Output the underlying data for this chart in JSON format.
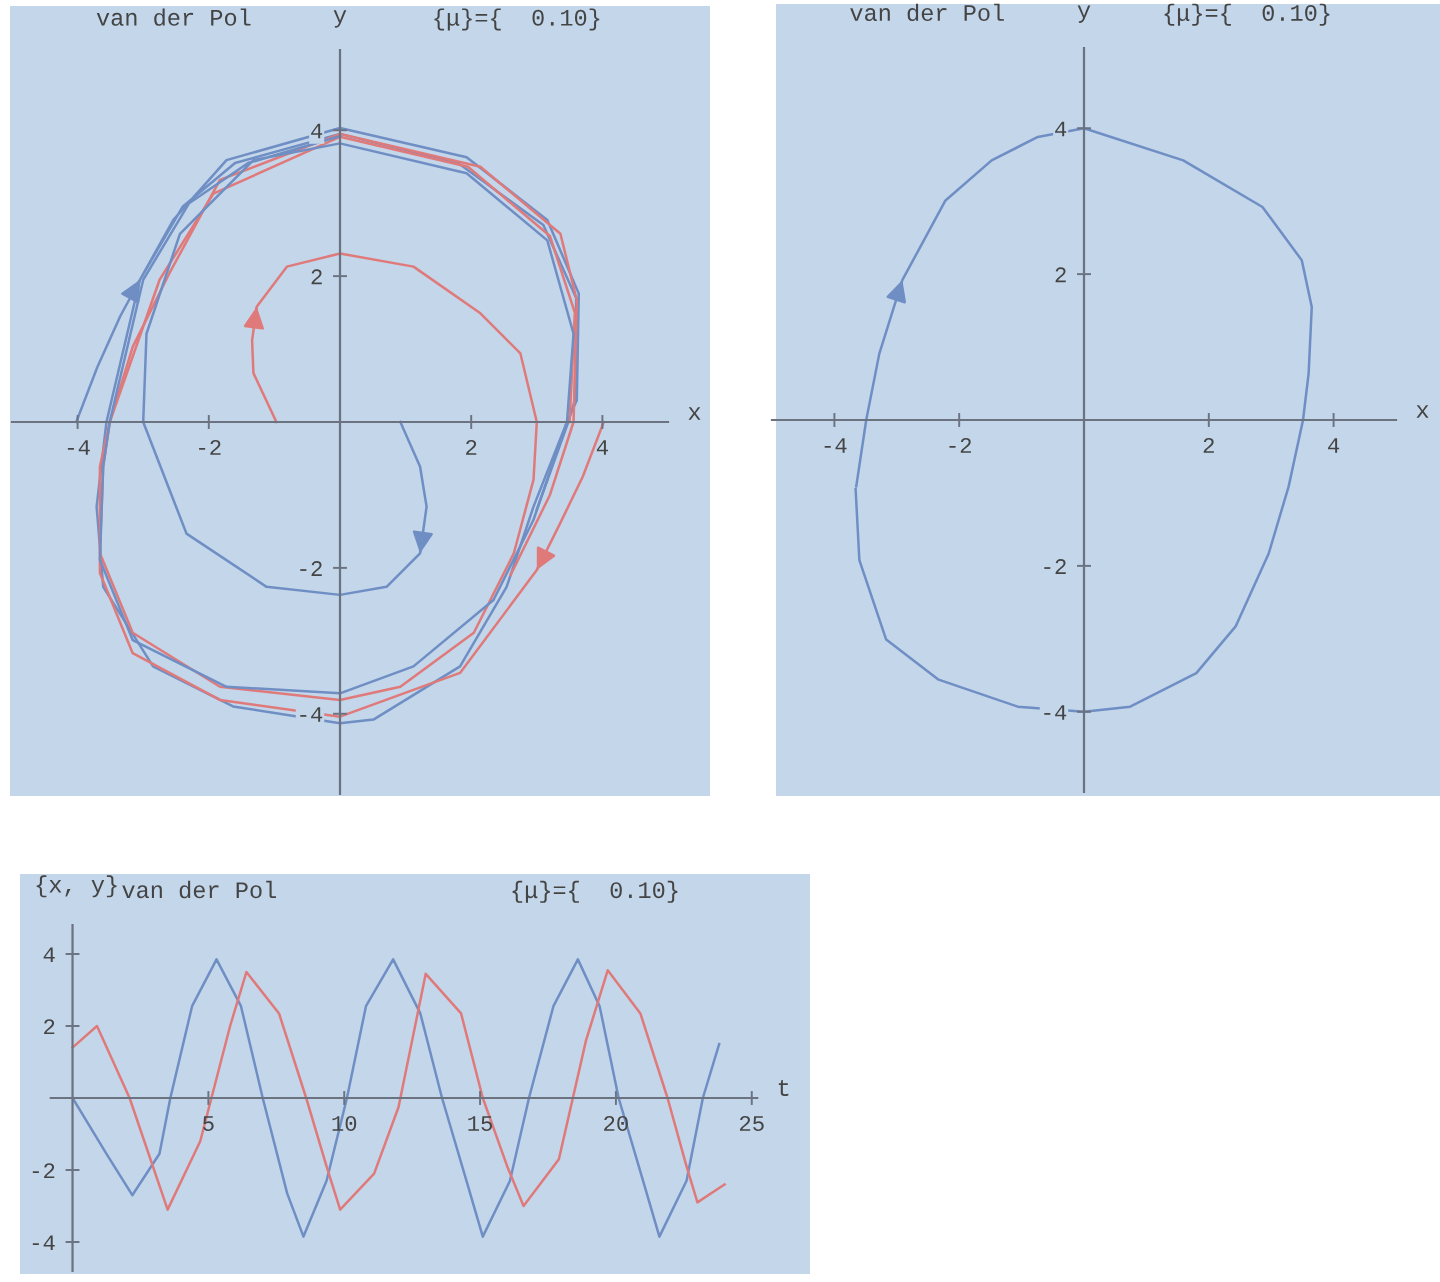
{
  "chart_data": [
    {
      "type": "line",
      "title": "van der Pol",
      "subtitle": "{μ}={  0.10}",
      "xlabel": "x",
      "ylabel": "y",
      "xlim": [
        -5,
        5
      ],
      "ylim": [
        -5.1,
        5.1
      ],
      "xticks": [
        -4,
        -2,
        2,
        4
      ],
      "yticks": [
        -4,
        -2,
        2,
        4
      ],
      "grid": false,
      "line_style": "solid",
      "marker": "none",
      "series": [
        {
          "color": "#6f8ec4",
          "x": [
            -4.02,
            -3.7,
            -3.35,
            -3.05,
            -2.54,
            -1.73,
            0,
            1.93,
            3.16,
            3.64,
            3.61,
            3.46,
            2.95,
            2.54,
            1.83,
            0.51,
            0,
            -1.63,
            -2.85,
            -3.61,
            -3.71,
            -3.56,
            -3.05,
            -2.4,
            -1.6,
            0,
            1.8,
            3.1,
            3.6,
            3.58,
            3.48,
            3.0
          ],
          "values": [
            0,
            0.75,
            1.45,
            1.95,
            2.77,
            3.59,
            4.03,
            3.63,
            2.77,
            1.76,
            0.3,
            0,
            -1.16,
            -2.26,
            -3.35,
            -4.08,
            -4.13,
            -3.9,
            -3.35,
            -2.26,
            -1.16,
            0,
            1.95,
            2.95,
            3.55,
            3.95,
            3.55,
            2.7,
            1.7,
            0.3,
            0,
            -1.2
          ]
        },
        {
          "color": "#e07a7a",
          "x": [
            4.02,
            3.7,
            3.35,
            3.0,
            1.83,
            0,
            -1.83,
            -3.16,
            -3.66,
            -3.66,
            -3.51,
            -3.16,
            -2.6,
            -1.83,
            0,
            2.14,
            3.36,
            3.61,
            3.56,
            3.2,
            2.6
          ],
          "values": [
            0,
            -0.75,
            -1.4,
            -2.03,
            -3.44,
            -4.04,
            -3.81,
            -3.17,
            -2.07,
            -0.61,
            0,
            1.03,
            2.04,
            3.32,
            3.95,
            3.5,
            2.58,
            1.67,
            0,
            -1.0,
            -2.1
          ]
        },
        {
          "color": "#e07a7a",
          "x": [
            -0.97,
            -1.32,
            -1.34,
            -1.27,
            -0.81,
            0,
            1.12,
            2.14,
            2.75,
            3.0,
            2.95,
            2.65,
            2.04,
            0.92,
            0,
            -1.83,
            -3.16,
            -3.66,
            -3.61,
            -3.51,
            -2.75,
            -1.93,
            0,
            1.95,
            3.2,
            3.58,
            3.5
          ],
          "values": [
            0,
            0.67,
            1.12,
            1.58,
            2.13,
            2.31,
            2.13,
            1.49,
            0.94,
            0,
            -0.79,
            -1.8,
            -2.89,
            -3.63,
            -3.81,
            -3.63,
            -2.89,
            -1.8,
            -0.61,
            0,
            1.95,
            3.13,
            3.91,
            3.5,
            2.55,
            1.5,
            0
          ]
        },
        {
          "color": "#6f8ec4",
          "x": [
            0.92,
            1.22,
            1.32,
            1.22,
            0.71,
            0,
            -1.12,
            -2.34,
            -3.0,
            -2.95,
            -2.44,
            -1.32,
            0,
            1.93,
            3.16,
            3.56,
            3.46,
            2.95,
            2.34,
            1.12,
            0,
            -1.73,
            -3.16,
            -3.66,
            -3.61,
            -3.51,
            -3.0,
            -2.3,
            -1.4,
            0
          ],
          "values": [
            0,
            -0.61,
            -1.16,
            -1.8,
            -2.26,
            -2.37,
            -2.26,
            -1.53,
            0,
            1.21,
            2.58,
            3.59,
            3.82,
            3.41,
            2.49,
            1.21,
            0,
            -1.34,
            -2.44,
            -3.35,
            -3.72,
            -3.63,
            -2.99,
            -1.89,
            -0.61,
            0,
            1.95,
            3.0,
            3.55,
            3.92
          ]
        }
      ]
    },
    {
      "type": "line",
      "title": "van der Pol",
      "subtitle": "{μ}={  0.10}",
      "xlabel": "x",
      "ylabel": "y",
      "xlim": [
        -5,
        5
      ],
      "ylim": [
        -5.1,
        5.1
      ],
      "xticks": [
        -4,
        -2,
        2,
        4
      ],
      "yticks": [
        -4,
        -2,
        2,
        4
      ],
      "grid": false,
      "line_style": "solid",
      "marker": "none",
      "series": [
        {
          "color": "#6f8ec4",
          "x": [
            -3.65,
            -3.49,
            -3.28,
            -2.91,
            -2.22,
            -1.48,
            -0.74,
            0,
            1.59,
            2.86,
            3.49,
            3.65,
            3.6,
            3.51,
            3.28,
            2.96,
            2.43,
            1.8,
            0.74,
            0,
            -1.06,
            -2.33,
            -3.17,
            -3.6,
            -3.66
          ],
          "values": [
            -0.91,
            0,
            0.91,
            1.92,
            3.01,
            3.56,
            3.88,
            4.0,
            3.56,
            2.92,
            2.19,
            1.55,
            0.64,
            0,
            -0.91,
            -1.83,
            -2.83,
            -3.47,
            -3.93,
            -4.0,
            -3.93,
            -3.56,
            -3.01,
            -1.92,
            -0.95
          ]
        }
      ]
    },
    {
      "type": "line",
      "title": "van der Pol",
      "subtitle": "{μ}={  0.10}",
      "xlabel": "t",
      "ylabel": "{x, y}",
      "xlim": [
        -0.8,
        25.2
      ],
      "ylim": [
        -4.8,
        4.8
      ],
      "xticks": [
        5,
        10,
        15,
        20,
        25
      ],
      "yticks": [
        -4,
        -2,
        2,
        4
      ],
      "grid": false,
      "line_style": "solid",
      "marker": "none",
      "series": [
        {
          "color": "#6f8ec4",
          "x": [
            0,
            1.25,
            2.2,
            3.2,
            3.6,
            4.4,
            5.3,
            6.2,
            7.0,
            7.9,
            8.5,
            9.35,
            10.1,
            10.8,
            11.8,
            12.8,
            13.6,
            14.5,
            15.1,
            16.1,
            16.8,
            17.7,
            18.6,
            19.4,
            20.1,
            21.0,
            21.6,
            22.6,
            23.2,
            23.8
          ],
          "values": [
            0,
            -1.55,
            -2.7,
            -1.55,
            0,
            2.55,
            3.85,
            2.55,
            0,
            -2.65,
            -3.85,
            -2.3,
            0,
            2.55,
            3.85,
            2.35,
            0,
            -2.3,
            -3.85,
            -2.3,
            0,
            2.55,
            3.85,
            2.55,
            0,
            -2.3,
            -3.85,
            -2.3,
            0,
            1.5
          ]
        },
        {
          "color": "#e07a7a",
          "x": [
            0,
            0.9,
            2.1,
            3.5,
            4.7,
            5.8,
            6.4,
            7.6,
            8.6,
            9.35,
            9.85,
            11.1,
            12.0,
            13.0,
            14.3,
            15.1,
            16.0,
            16.6,
            17.9,
            18.9,
            19.7,
            20.9,
            21.9,
            22.6,
            23.0,
            23.8,
            24.0
          ],
          "values": [
            1.4,
            2.0,
            0,
            -3.1,
            -1.2,
            2.0,
            3.5,
            2.35,
            0,
            -1.9,
            -3.1,
            -2.1,
            -0.25,
            3.45,
            2.35,
            0,
            -1.9,
            -3.0,
            -1.7,
            1.6,
            3.55,
            2.35,
            0,
            -1.9,
            -2.9,
            -2.5,
            -2.4
          ]
        }
      ]
    }
  ]
}
